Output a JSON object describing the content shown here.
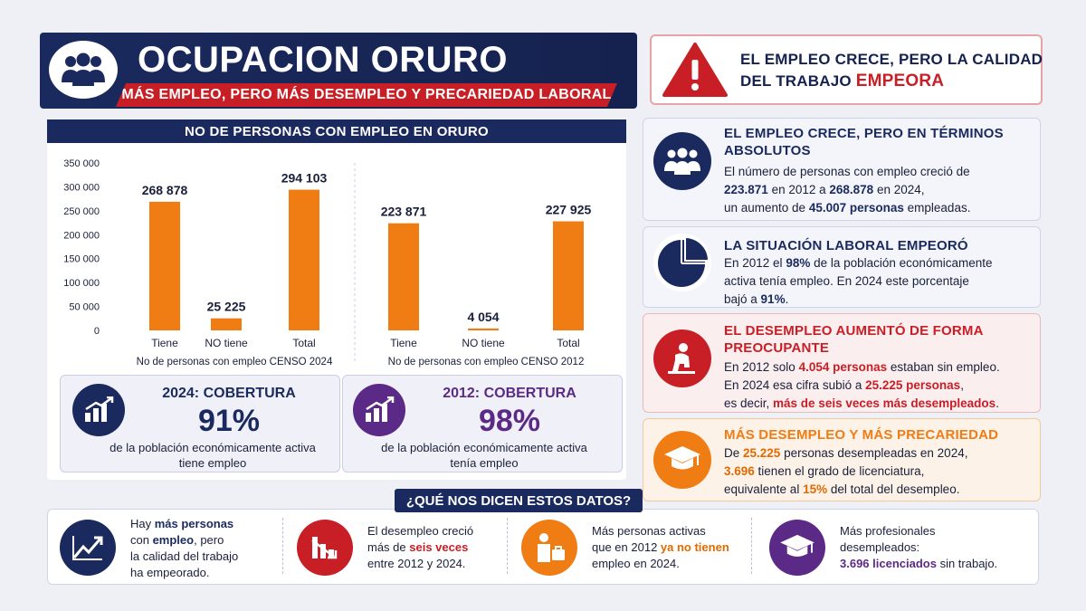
{
  "header": {
    "title": "OCUPACION ORURO",
    "subtitle": "MÁS EMPLEO, PERO MÁS DESEMPLEO Y PRECARIEDAD LABORAL"
  },
  "alert": {
    "line1": "EL EMPLEO CRECE, PERO LA CALIDAD",
    "line2_prefix": "DEL TRABAJO ",
    "line2_highlight": "EMPEORA"
  },
  "chart_data": {
    "type": "bar",
    "title": "NO DE PERSONAS CON EMPLEO EN ORURO",
    "ylim": [
      0,
      350000
    ],
    "yticks": [
      0,
      50000,
      100000,
      150000,
      200000,
      250000,
      300000,
      350000
    ],
    "ytick_labels": [
      "0",
      "50 000",
      "100 000",
      "150 000",
      "200 000",
      "250 000",
      "300 000",
      "350 000"
    ],
    "grid": false,
    "bar_color": "#f07c14",
    "panels": [
      {
        "xlabel": "No de personas con empleo CENSO 2024",
        "categories": [
          "Tiene",
          "NO tiene",
          "Total"
        ],
        "values": [
          268878,
          25225,
          294103
        ],
        "value_labels": [
          "268 878",
          "25 225",
          "294 103"
        ]
      },
      {
        "xlabel": "No de personas con empleo CENSO 2012",
        "categories": [
          "Tiene",
          "NO tiene",
          "Total"
        ],
        "values": [
          223871,
          4054,
          227925
        ],
        "value_labels": [
          "223 871",
          "4 054",
          "227 925"
        ]
      }
    ]
  },
  "coverage": [
    {
      "title": "2024: COBERTURA",
      "percent": "91%",
      "desc_line1": "de la población económicamente activa",
      "desc_line2": "tiene empleo",
      "color": "#1b2a5e",
      "icon": "bar-growth-icon"
    },
    {
      "title": "2012: COBERTURA",
      "percent": "98%",
      "desc_line1": "de la población económicamente activa",
      "desc_line2": "tenía empleo",
      "color": "#5b2a86",
      "icon": "bar-growth-icon"
    }
  ],
  "info": {
    "employment": {
      "title_line1": "EL EMPLEO CRECE, PERO EN TÉRMINOS",
      "title_line2": "ABSOLUTOS",
      "t1": "El número de personas con empleo creció de",
      "v1": "223.871",
      "t2": " en 2012 a ",
      "v2": "268.878",
      "t3": " en 2024,",
      "t4": "un aumento de ",
      "v3": "45.007 personas",
      "t5": " empleadas."
    },
    "situation": {
      "title": "LA SITUACIÓN LABORAL EMPEORÓ",
      "t1": "En 2012 el ",
      "v1": "98%",
      "t2": " de la población económicamente",
      "t3": "activa tenía empleo. En 2024 este porcentaje",
      "t4": "bajó a ",
      "v2": "91%",
      "t5": "."
    },
    "unemployment": {
      "title_line1": "EL DESEMPLEO AUMENTÓ DE FORMA",
      "title_line2": "PREOCUPANTE",
      "t1": "En 2012 solo ",
      "v1": "4.054 personas",
      "t2": " estaban sin empleo.",
      "t3": "En 2024 esa cifra subió a ",
      "v2": "25.225 personas",
      "t4": ",",
      "t5": "es decir, ",
      "v3": "más de seis veces más desempleados",
      "t6": "."
    },
    "precarity": {
      "title": "MÁS DESEMPLEO Y MÁS PRECARIEDAD",
      "t1": "De ",
      "v1": "25.225",
      "t2": " personas desempleadas en 2024,",
      "v2": "3.696",
      "t3": " tienen el grado de licenciatura,",
      "t4": "equivalente al ",
      "v3": "15%",
      "t5": " del total del desempleo."
    }
  },
  "bottom": {
    "question": "¿QUÉ NOS DICEN ESTOS DATOS?",
    "item1": {
      "a": "Hay ",
      "b": "más personas",
      "c": "con ",
      "d": "empleo",
      "e": ", pero",
      "f": "la calidad del trabajo",
      "g": "ha empeorado."
    },
    "item2": {
      "a": "El desempleo creció",
      "b": "más de ",
      "c": "seis veces",
      "d": "entre 2012 y 2024."
    },
    "item3": {
      "a": "Más personas activas",
      "b": "que en 2012 ",
      "c": "ya no tienen",
      "d": "empleo en 2024."
    },
    "item4": {
      "a": "Más profesionales",
      "b": "desempleados:",
      "c": "3.696 licenciados",
      "d": " sin trabajo."
    }
  },
  "colors": {
    "navy": "#1b2a5e",
    "red": "#c81e26",
    "orange": "#f07c14",
    "purple": "#5b2a86"
  }
}
